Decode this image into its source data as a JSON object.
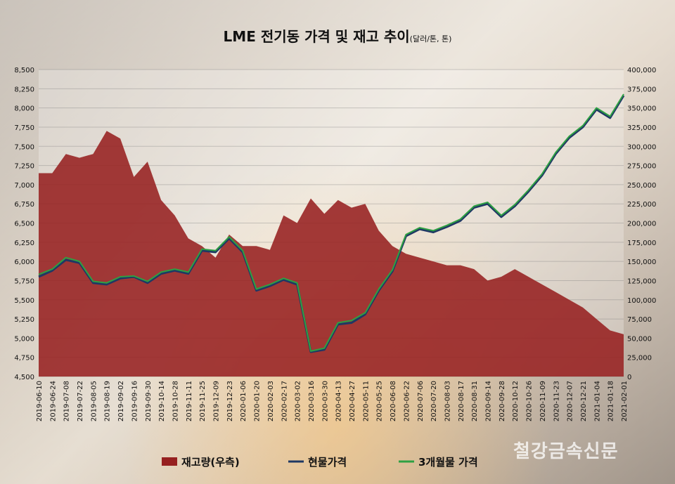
{
  "chart_data": {
    "type": "line",
    "title": "LME 전기동 가격 및 재고 추이",
    "unit_note": "(달러/톤, 톤)",
    "x": [
      "2019-06-10",
      "2019-06-24",
      "2019-07-08",
      "2019-07-22",
      "2019-08-05",
      "2019-08-19",
      "2019-09-02",
      "2019-09-16",
      "2019-09-30",
      "2019-10-14",
      "2019-10-28",
      "2019-11-11",
      "2019-11-25",
      "2019-12-09",
      "2019-12-23",
      "2020-01-06",
      "2020-01-20",
      "2020-02-03",
      "2020-02-17",
      "2020-03-02",
      "2020-03-16",
      "2020-03-30",
      "2020-04-13",
      "2020-04-27",
      "2020-05-11",
      "2020-05-25",
      "2020-06-08",
      "2020-06-22",
      "2020-07-06",
      "2020-07-20",
      "2020-08-03",
      "2020-08-17",
      "2020-08-31",
      "2020-09-14",
      "2020-09-28",
      "2020-10-12",
      "2020-10-26",
      "2020-11-09",
      "2020-11-23",
      "2020-12-07",
      "2020-12-21",
      "2021-01-04",
      "2021-01-18",
      "2021-02-01"
    ],
    "xtick_labels": [
      "2019-06-10",
      "2019-06-24",
      "2019-07-08",
      "2019-07-22",
      "2019-08-05",
      "2019-08-19",
      "2019-09-02",
      "2019-09-16",
      "2019-09-30",
      "2019-10-14",
      "2019-10-28",
      "2019-11-11",
      "2019-11-25",
      "2019-12-09",
      "2019-12-23",
      "2020-01-06",
      "2020-01-20",
      "2020-02-03",
      "2020-02-17",
      "2020-03-02",
      "2020-03-16",
      "2020-03-30",
      "2020-04-13",
      "2020-04-27",
      "2020-05-11",
      "2020-05-25",
      "2020-06-08",
      "2020-06-22",
      "2020-07-06",
      "2020-07-20",
      "2020-08-03",
      "2020-08-17",
      "2020-08-31",
      "2020-09-14",
      "2020-09-28",
      "2020-10-12",
      "2020-10-26",
      "2020-11-09",
      "2020-11-23",
      "2020-12-07",
      "2020-12-21",
      "2021-01-04",
      "2021-01-18",
      "2021-02-01"
    ],
    "y_left": {
      "ylim": [
        4500,
        8500
      ],
      "ticks": [
        "4,500",
        "4,750",
        "5,000",
        "5,250",
        "5,500",
        "5,750",
        "6,000",
        "6,250",
        "6,500",
        "6,750",
        "7,000",
        "7,250",
        "7,500",
        "7,750",
        "8,000",
        "8,250",
        "8,500"
      ]
    },
    "y_right": {
      "ylim": [
        0,
        400000
      ],
      "ticks": [
        "0",
        "25,000",
        "50,000",
        "75,000",
        "100,000",
        "125,000",
        "150,000",
        "175,000",
        "200,000",
        "225,000",
        "250,000",
        "275,000",
        "300,000",
        "325,000",
        "350,000",
        "375,000",
        "400,000"
      ]
    },
    "series": [
      {
        "name": "재고량(우측)",
        "kind": "area",
        "axis": "right",
        "color": "#962020",
        "values": [
          265000,
          265000,
          290000,
          285000,
          290000,
          320000,
          310000,
          260000,
          280000,
          230000,
          210000,
          180000,
          170000,
          155000,
          185000,
          170000,
          170000,
          165000,
          210000,
          200000,
          232000,
          212000,
          230000,
          220000,
          225000,
          190000,
          170000,
          160000,
          155000,
          150000,
          145000,
          145000,
          140000,
          125000,
          130000,
          140000,
          130000,
          120000,
          110000,
          100000,
          90000,
          75000,
          60000,
          55000
        ]
      },
      {
        "name": "현물가격",
        "kind": "line",
        "axis": "left",
        "color": "#1f3864",
        "values": [
          5800,
          5880,
          6020,
          5980,
          5720,
          5700,
          5780,
          5800,
          5720,
          5840,
          5880,
          5840,
          6140,
          6120,
          6300,
          6120,
          5620,
          5680,
          5760,
          5700,
          4820,
          4850,
          5180,
          5200,
          5310,
          5620,
          5870,
          6330,
          6420,
          6380,
          6450,
          6530,
          6700,
          6750,
          6580,
          6720,
          6910,
          7120,
          7400,
          7610,
          7750,
          7980,
          7870,
          8160
        ]
      },
      {
        "name": "3개월물 가격",
        "kind": "line",
        "axis": "left",
        "color": "#2ea043",
        "values": [
          5830,
          5900,
          6050,
          6000,
          5740,
          5720,
          5800,
          5810,
          5740,
          5860,
          5900,
          5860,
          6160,
          6140,
          6320,
          6140,
          5640,
          5700,
          5780,
          5720,
          4830,
          4870,
          5200,
          5230,
          5330,
          5640,
          5890,
          6350,
          6440,
          6400,
          6470,
          6550,
          6720,
          6770,
          6600,
          6740,
          6930,
          7140,
          7420,
          7630,
          7770,
          8000,
          7890,
          8180
        ]
      }
    ]
  },
  "watermark": "철강금속신문"
}
